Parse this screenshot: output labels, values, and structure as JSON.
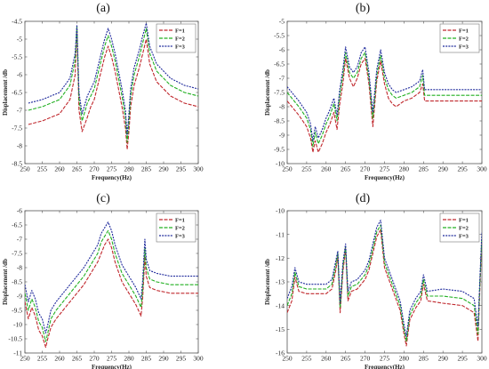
{
  "colors": {
    "F=1": "#c0282d",
    "F=2": "#22b022",
    "F=3": "#1f2a9c"
  },
  "chart_data": [
    {
      "type": "line",
      "panel_label": "(a)",
      "xlabel": "Frequency(Hz)",
      "ylabel": "Displacement /db",
      "xlim": [
        250,
        300
      ],
      "ylim": [
        -8.5,
        -4.5
      ],
      "x_ticks": [
        250,
        255,
        260,
        265,
        270,
        275,
        280,
        285,
        290,
        295,
        300
      ],
      "y_ticks": [
        -8.5,
        -8,
        -7.5,
        -7,
        -6.5,
        -6,
        -5.5,
        -5,
        -4.5
      ],
      "y_tick_labels": [
        "-8.5",
        "-8",
        "-7.5",
        "-7",
        "-6.5",
        "-6",
        "-5.5",
        "-5",
        "-4.5"
      ],
      "legend": [
        "F=1",
        "F=2",
        "F=3"
      ],
      "legend_position": "top-right",
      "series": [
        {
          "name": "F=1",
          "x": [
            251,
            255,
            260,
            263,
            264.5,
            265,
            265.6,
            266.5,
            268,
            269,
            270,
            271,
            272,
            273,
            274,
            275,
            276,
            277,
            278,
            279,
            279.5,
            280,
            280.5,
            281.5,
            283,
            284,
            285,
            286,
            288,
            292,
            296,
            300
          ],
          "y": [
            -7.4,
            -7.3,
            -7.1,
            -6.7,
            -6.0,
            -4.7,
            -7.0,
            -7.6,
            -7.2,
            -6.9,
            -6.7,
            -6.3,
            -5.9,
            -5.5,
            -5.2,
            -5.5,
            -5.9,
            -6.4,
            -6.9,
            -7.5,
            -8.1,
            -7.6,
            -6.9,
            -6.3,
            -5.8,
            -5.4,
            -5.0,
            -5.7,
            -6.2,
            -6.6,
            -6.8,
            -6.9
          ]
        },
        {
          "name": "F=2",
          "x": [
            251,
            255,
            260,
            263,
            264.5,
            265,
            265.6,
            266.5,
            268,
            269,
            270,
            271,
            272,
            273,
            274,
            275,
            276,
            277,
            278,
            279,
            279.5,
            280,
            280.5,
            281.5,
            283,
            284,
            285,
            286,
            288,
            292,
            296,
            300
          ],
          "y": [
            -7.0,
            -6.9,
            -6.7,
            -6.3,
            -5.6,
            -4.65,
            -6.7,
            -7.3,
            -6.8,
            -6.6,
            -6.4,
            -6.0,
            -5.6,
            -5.2,
            -4.9,
            -5.2,
            -5.6,
            -6.1,
            -6.6,
            -7.2,
            -7.9,
            -7.3,
            -6.6,
            -6.0,
            -5.5,
            -5.1,
            -4.7,
            -5.4,
            -5.9,
            -6.3,
            -6.5,
            -6.6
          ]
        },
        {
          "name": "F=3",
          "x": [
            251,
            255,
            260,
            263,
            264.5,
            265,
            265.6,
            266.5,
            268,
            269,
            270,
            271,
            272,
            273,
            274,
            275,
            276,
            277,
            278,
            279,
            279.5,
            280,
            280.5,
            281.5,
            283,
            284,
            285,
            286,
            288,
            292,
            296,
            300
          ],
          "y": [
            -6.8,
            -6.7,
            -6.5,
            -6.1,
            -5.4,
            -4.6,
            -6.5,
            -7.1,
            -6.6,
            -6.4,
            -6.2,
            -5.8,
            -5.4,
            -5.0,
            -4.7,
            -5.0,
            -5.4,
            -5.9,
            -6.4,
            -7.0,
            -7.7,
            -7.1,
            -6.4,
            -5.8,
            -5.3,
            -4.9,
            -4.55,
            -5.2,
            -5.7,
            -6.1,
            -6.3,
            -6.4
          ]
        }
      ]
    },
    {
      "type": "line",
      "panel_label": "(b)",
      "xlabel": "Frequency(Hz)",
      "ylabel": "Displacement /db",
      "xlim": [
        250,
        300
      ],
      "ylim": [
        -10,
        -5
      ],
      "x_ticks": [
        250,
        255,
        260,
        265,
        270,
        275,
        280,
        285,
        290,
        295,
        300
      ],
      "y_ticks": [
        -10,
        -9.5,
        -9,
        -8.5,
        -8,
        -7.5,
        -7,
        -6.5,
        -6,
        -5.5,
        -5
      ],
      "y_tick_labels": [
        "-10",
        "-9.5",
        "-9",
        "-8.5",
        "-8",
        "-7.5",
        "-7",
        "-6.5",
        "-6",
        "-5.5",
        "-5"
      ],
      "legend": [
        "F=1",
        "F=2",
        "F=3"
      ],
      "legend_position": "top-right",
      "series": [
        {
          "name": "F=1",
          "x": [
            250,
            253,
            255,
            256,
            256.6,
            257.2,
            258,
            259,
            260,
            261,
            262,
            262.8,
            263.5,
            264.3,
            265,
            266,
            267,
            268,
            269,
            270,
            271,
            272,
            273,
            274,
            275,
            276,
            277,
            278,
            280,
            282,
            284,
            284.8,
            285.3,
            290,
            295,
            300
          ],
          "y": [
            -7.8,
            -8.3,
            -8.7,
            -9.1,
            -9.6,
            -9.2,
            -9.6,
            -9.3,
            -8.9,
            -8.6,
            -8.2,
            -8.8,
            -7.9,
            -7.2,
            -6.3,
            -7.0,
            -7.3,
            -7.0,
            -6.5,
            -6.3,
            -7.2,
            -8.7,
            -7.1,
            -6.4,
            -7.2,
            -7.7,
            -7.9,
            -8.0,
            -7.8,
            -7.7,
            -7.5,
            -7.2,
            -7.8,
            -7.8,
            -7.8,
            -7.8
          ]
        },
        {
          "name": "F=2",
          "x": [
            250,
            253,
            255,
            256,
            256.6,
            257.2,
            258,
            259,
            260,
            261,
            262,
            262.8,
            263.5,
            264.3,
            265,
            266,
            267,
            268,
            269,
            270,
            271,
            272,
            273,
            274,
            275,
            276,
            277,
            278,
            280,
            282,
            284,
            284.8,
            285.3,
            290,
            295,
            300
          ],
          "y": [
            -7.5,
            -8.0,
            -8.4,
            -8.8,
            -9.4,
            -8.9,
            -9.3,
            -9.0,
            -8.6,
            -8.3,
            -7.9,
            -8.5,
            -7.6,
            -6.9,
            -6.1,
            -6.8,
            -7.0,
            -6.8,
            -6.3,
            -6.1,
            -7.0,
            -8.4,
            -6.9,
            -6.2,
            -7.0,
            -7.4,
            -7.6,
            -7.7,
            -7.6,
            -7.5,
            -7.3,
            -6.9,
            -7.6,
            -7.6,
            -7.6,
            -7.6
          ]
        },
        {
          "name": "F=3",
          "x": [
            250,
            253,
            255,
            256,
            256.6,
            257.2,
            258,
            259,
            260,
            261,
            262,
            262.8,
            263.5,
            264.3,
            265,
            266,
            267,
            268,
            269,
            270,
            271,
            272,
            273,
            274,
            275,
            276,
            277,
            278,
            280,
            282,
            284,
            284.8,
            285.3,
            290,
            295,
            300
          ],
          "y": [
            -7.3,
            -7.8,
            -8.2,
            -8.6,
            -9.2,
            -8.7,
            -9.1,
            -8.8,
            -8.4,
            -8.1,
            -7.7,
            -8.3,
            -7.4,
            -6.7,
            -5.9,
            -6.6,
            -6.8,
            -6.6,
            -6.1,
            -5.9,
            -6.8,
            -8.2,
            -6.7,
            -6.0,
            -6.8,
            -7.2,
            -7.4,
            -7.5,
            -7.4,
            -7.3,
            -7.1,
            -6.7,
            -7.4,
            -7.4,
            -7.4,
            -7.4
          ]
        }
      ]
    },
    {
      "type": "line",
      "panel_label": "(c)",
      "xlabel": "Frequency(Hz)",
      "ylabel": "Displacement /db",
      "xlim": [
        250,
        300
      ],
      "ylim": [
        -11,
        -6
      ],
      "x_ticks": [
        250,
        255,
        260,
        265,
        270,
        275,
        280,
        285,
        290,
        295,
        300
      ],
      "y_ticks": [
        -11,
        -10.5,
        -10,
        -9.5,
        -9,
        -8.5,
        -8,
        -7.5,
        -7,
        -6.5,
        -6
      ],
      "y_tick_labels": [
        "-11",
        "-10.5",
        "-10",
        "-9.5",
        "-9",
        "-8.5",
        "-8",
        "-7.5",
        "-7",
        "-6.5",
        "-6"
      ],
      "legend": [
        "F=1",
        "F=2",
        "F=3"
      ],
      "legend_position": "top-right",
      "series": [
        {
          "name": "F=1",
          "x": [
            250,
            251,
            252,
            253,
            254,
            255,
            256,
            256.6,
            257.5,
            259,
            261,
            263,
            265,
            267,
            269,
            271,
            272,
            273,
            274,
            275,
            276,
            278,
            280,
            282,
            283.5,
            284,
            284.6,
            285,
            286,
            288,
            292,
            296,
            300
          ],
          "y": [
            -9.2,
            -9.8,
            -9.4,
            -9.7,
            -10.2,
            -10.4,
            -10.8,
            -10.5,
            -10.1,
            -9.8,
            -9.5,
            -9.2,
            -8.9,
            -8.6,
            -8.2,
            -7.8,
            -7.5,
            -7.2,
            -7.0,
            -7.3,
            -7.8,
            -8.5,
            -8.9,
            -9.3,
            -9.7,
            -9.0,
            -7.6,
            -8.3,
            -8.7,
            -8.8,
            -8.9,
            -8.9,
            -8.9
          ]
        },
        {
          "name": "F=2",
          "x": [
            250,
            251,
            252,
            253,
            254,
            255,
            256,
            256.6,
            257.5,
            259,
            261,
            263,
            265,
            267,
            269,
            271,
            272,
            273,
            274,
            275,
            276,
            278,
            280,
            282,
            283.5,
            284,
            284.6,
            285,
            286,
            288,
            292,
            296,
            300
          ],
          "y": [
            -8.9,
            -9.5,
            -9.1,
            -9.4,
            -9.9,
            -10.1,
            -10.6,
            -10.3,
            -9.8,
            -9.5,
            -9.2,
            -8.9,
            -8.6,
            -8.3,
            -7.9,
            -7.5,
            -7.1,
            -6.9,
            -6.7,
            -7.0,
            -7.5,
            -8.2,
            -8.6,
            -9.0,
            -9.4,
            -8.7,
            -7.3,
            -8.0,
            -8.4,
            -8.5,
            -8.6,
            -8.6,
            -8.6
          ]
        },
        {
          "name": "F=3",
          "x": [
            250,
            251,
            252,
            253,
            254,
            255,
            256,
            256.6,
            257.5,
            259,
            261,
            263,
            265,
            267,
            269,
            271,
            272,
            273,
            274,
            275,
            276,
            278,
            280,
            282,
            283.5,
            284,
            284.6,
            285,
            286,
            288,
            292,
            296,
            300
          ],
          "y": [
            -8.6,
            -9.2,
            -8.8,
            -9.1,
            -9.6,
            -9.8,
            -10.3,
            -10.0,
            -9.5,
            -9.2,
            -8.9,
            -8.6,
            -8.3,
            -8.0,
            -7.6,
            -7.2,
            -6.8,
            -6.6,
            -6.4,
            -6.7,
            -7.2,
            -7.9,
            -8.3,
            -8.7,
            -9.1,
            -8.4,
            -7.0,
            -7.7,
            -8.1,
            -8.2,
            -8.3,
            -8.3,
            -8.3
          ]
        }
      ]
    },
    {
      "type": "line",
      "panel_label": "(d)",
      "xlabel": "Frequency(Hz)",
      "ylabel": "Displacement /db",
      "xlim": [
        250,
        300
      ],
      "ylim": [
        -16,
        -10
      ],
      "x_ticks": [
        250,
        255,
        260,
        265,
        270,
        275,
        280,
        285,
        290,
        295,
        300
      ],
      "y_ticks": [
        -16,
        -15,
        -14,
        -13,
        -12,
        -11,
        -10
      ],
      "y_tick_labels": [
        "-16",
        "-15",
        "-14",
        "-13",
        "-12",
        "-11",
        "-10"
      ],
      "legend": [
        "F=1",
        "F=2",
        "F=3"
      ],
      "legend_position": "top-right",
      "series": [
        {
          "name": "F=1",
          "x": [
            250,
            251.2,
            252,
            253,
            255,
            258,
            260,
            261.5,
            262.5,
            263,
            263.6,
            264.3,
            265,
            265.6,
            266.5,
            268,
            269,
            270,
            271,
            272,
            273,
            274,
            275,
            277,
            279,
            280,
            280.6,
            281.5,
            283,
            284.3,
            285,
            286,
            290,
            295,
            298,
            299,
            299.5,
            300
          ],
          "y": [
            -14.3,
            -13.8,
            -12.8,
            -13.4,
            -13.5,
            -13.5,
            -13.5,
            -13.3,
            -12.5,
            -11.9,
            -14.3,
            -12.6,
            -11.6,
            -13.8,
            -13.4,
            -13.3,
            -13.1,
            -12.9,
            -12.5,
            -11.8,
            -11.1,
            -10.8,
            -12.4,
            -13.3,
            -14.2,
            -15.2,
            -15.7,
            -14.6,
            -14.1,
            -13.8,
            -13.1,
            -13.8,
            -13.9,
            -14.0,
            -14.3,
            -15.5,
            -13.2,
            -11.3
          ]
        },
        {
          "name": "F=2",
          "x": [
            250,
            251.2,
            252,
            253,
            255,
            258,
            260,
            261.5,
            262.5,
            263,
            263.6,
            264.3,
            265,
            265.6,
            266.5,
            268,
            269,
            270,
            271,
            272,
            273,
            274,
            275,
            277,
            279,
            280,
            280.6,
            281.5,
            283,
            284.3,
            285,
            286,
            290,
            295,
            298,
            299,
            299.5,
            300
          ],
          "y": [
            -14.0,
            -13.5,
            -12.6,
            -13.2,
            -13.3,
            -13.3,
            -13.3,
            -13.1,
            -12.3,
            -11.8,
            -14.1,
            -12.4,
            -11.5,
            -13.6,
            -13.2,
            -13.1,
            -12.9,
            -12.7,
            -12.3,
            -11.6,
            -10.9,
            -10.6,
            -12.2,
            -13.1,
            -14.0,
            -15.0,
            -15.5,
            -14.4,
            -13.9,
            -13.6,
            -12.9,
            -13.6,
            -13.6,
            -13.7,
            -14.0,
            -15.2,
            -13.0,
            -11.1
          ]
        },
        {
          "name": "F=3",
          "x": [
            250,
            251.2,
            252,
            253,
            255,
            258,
            260,
            261.5,
            262.5,
            263,
            263.6,
            264.3,
            265,
            265.6,
            266.5,
            268,
            269,
            270,
            271,
            272,
            273,
            274,
            275,
            277,
            279,
            280,
            280.6,
            281.5,
            283,
            284.3,
            285,
            286,
            290,
            295,
            298,
            299,
            299.5,
            300
          ],
          "y": [
            -13.7,
            -13.2,
            -12.4,
            -13.0,
            -13.1,
            -13.1,
            -13.1,
            -12.9,
            -12.1,
            -11.7,
            -13.9,
            -12.2,
            -11.4,
            -13.4,
            -13.0,
            -12.9,
            -12.7,
            -12.5,
            -12.1,
            -11.4,
            -10.7,
            -10.4,
            -12.0,
            -12.9,
            -13.8,
            -14.8,
            -15.3,
            -14.2,
            -13.7,
            -13.4,
            -12.7,
            -13.4,
            -13.3,
            -13.4,
            -13.7,
            -14.9,
            -12.8,
            -10.9
          ]
        }
      ]
    }
  ]
}
